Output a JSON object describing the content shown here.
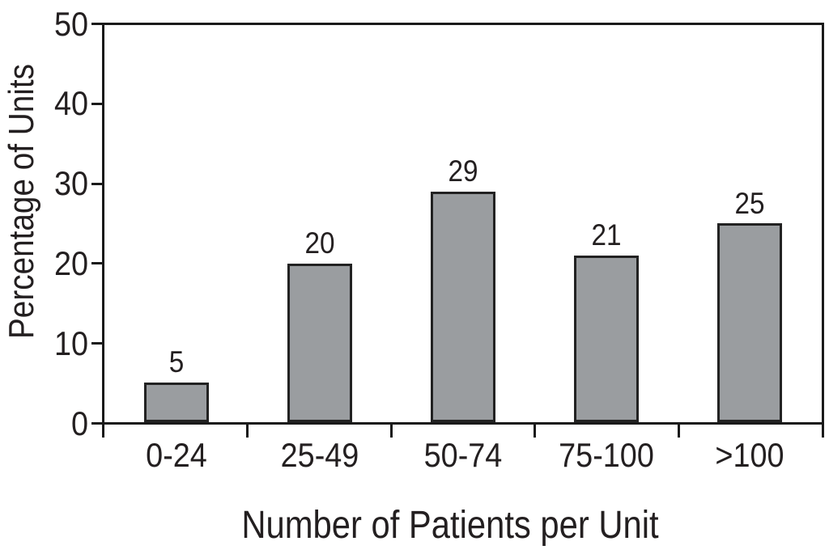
{
  "figure": {
    "background": "#ffffff"
  },
  "chart_data": {
    "type": "bar",
    "categories": [
      "0-24",
      "25-49",
      "50-74",
      "75-100",
      ">100"
    ],
    "values": [
      5,
      20,
      29,
      21,
      25
    ],
    "bar_value_labels": [
      "5",
      "20",
      "29",
      "21",
      "25"
    ],
    "xlabel": "Number of Patients per Unit",
    "ylabel": "Percentage of Units",
    "ylim": [
      0,
      50
    ],
    "yticks": [
      0,
      10,
      20,
      30,
      40,
      50
    ],
    "grid": false,
    "legend": "none",
    "frame": "box",
    "bar_fill_color": "#9a9da0",
    "bar_border_color": "#222222",
    "axis_color": "#1a1a1a",
    "text_color": "#231f20"
  }
}
